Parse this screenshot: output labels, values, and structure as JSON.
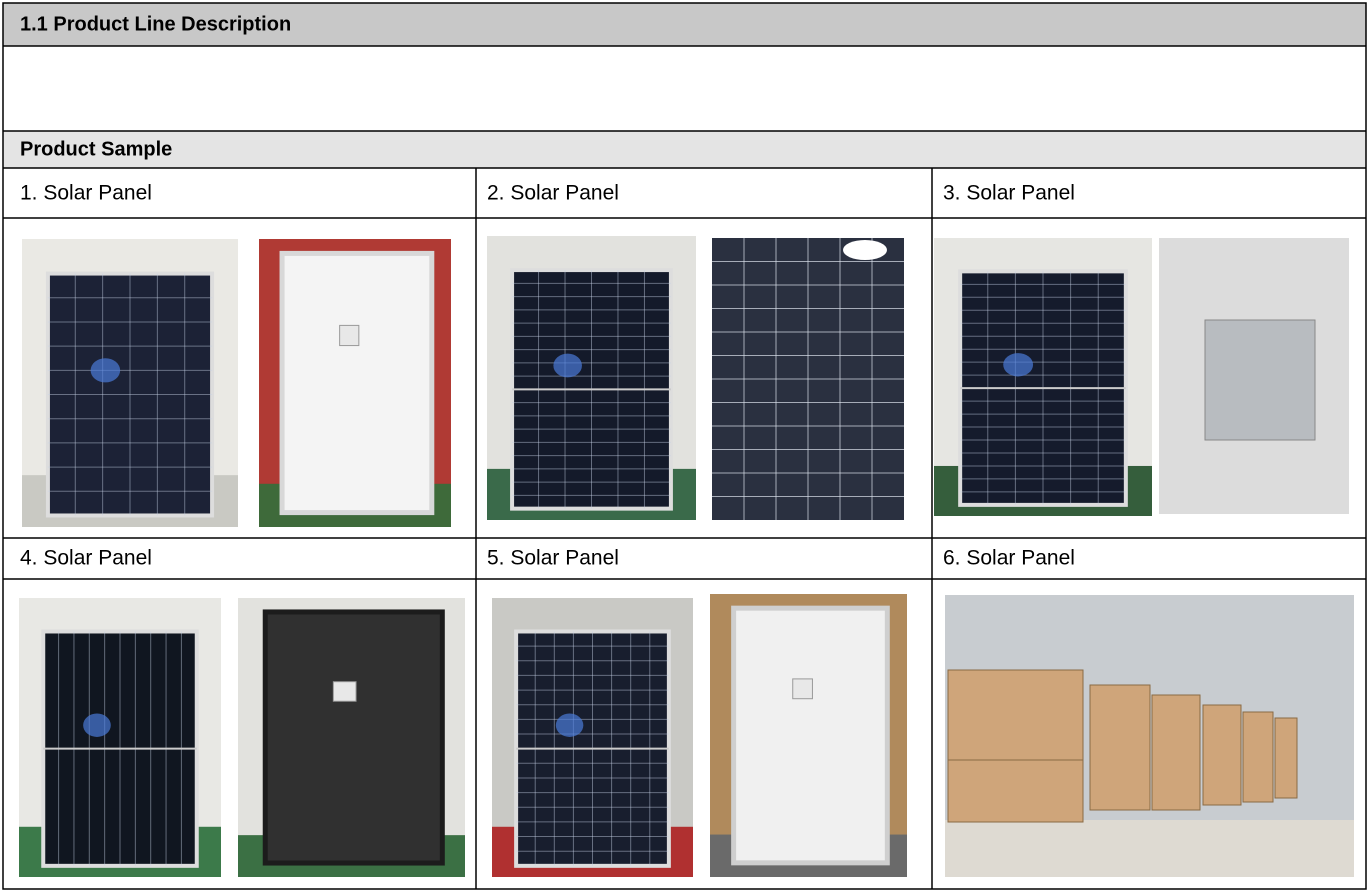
{
  "header": {
    "title": "1.1 Product Line Description"
  },
  "section": {
    "title": "Product Sample"
  },
  "products": [
    {
      "label": "1. Solar Panel"
    },
    {
      "label": "2. Solar Panel"
    },
    {
      "label": "3. Solar Panel"
    },
    {
      "label": "4. Solar Panel"
    },
    {
      "label": "5. Solar Panel"
    },
    {
      "label": "6. Solar Panel"
    }
  ]
}
